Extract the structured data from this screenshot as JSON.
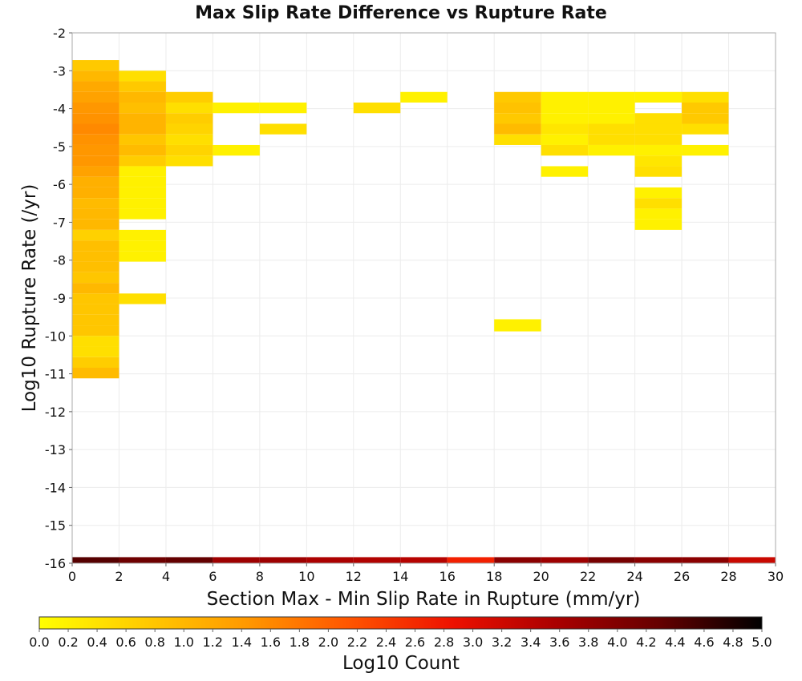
{
  "chart_data": {
    "type": "heatmap",
    "title": "Max Slip Rate Difference vs Rupture Rate",
    "xlabel": "Section Max - Min Slip Rate in Rupture (mm/yr)",
    "ylabel": "Log10 Rupture Rate (/yr)",
    "xlim": [
      0,
      30
    ],
    "ylim": [
      -16,
      -2
    ],
    "x_ticks": [
      "0",
      "2",
      "4",
      "6",
      "8",
      "10",
      "12",
      "14",
      "16",
      "18",
      "20",
      "22",
      "24",
      "26",
      "28",
      "30"
    ],
    "y_ticks": [
      "-2",
      "-3",
      "-4",
      "-5",
      "-6",
      "-7",
      "-8",
      "-9",
      "-10",
      "-11",
      "-12",
      "-13",
      "-14",
      "-15",
      "-16"
    ],
    "grid": true,
    "colorscale": {
      "label": "Log10 Count",
      "min": 0.0,
      "max": 5.0,
      "ticks": [
        "0.0",
        "0.2",
        "0.4",
        "0.6",
        "0.8",
        "1.0",
        "1.2",
        "1.4",
        "1.6",
        "1.8",
        "2.0",
        "2.2",
        "2.4",
        "2.6",
        "2.8",
        "3.0",
        "3.2",
        "3.4",
        "3.6",
        "3.8",
        "4.0",
        "4.2",
        "4.4",
        "4.6",
        "4.8",
        "5.0"
      ],
      "colors": [
        "#ffff00",
        "#ffcc00",
        "#ff9900",
        "#ff5500",
        "#ee1100",
        "#aa0000",
        "#660000",
        "#000000"
      ]
    },
    "cells": [
      {
        "x": [
          0,
          2
        ],
        "y": [
          -3.0,
          -2.72
        ],
        "v": 0.75
      },
      {
        "x": [
          0,
          2
        ],
        "y": [
          -3.28,
          -3.0
        ],
        "v": 1.0
      },
      {
        "x": [
          0,
          2
        ],
        "y": [
          -3.56,
          -3.28
        ],
        "v": 1.2
      },
      {
        "x": [
          0,
          2
        ],
        "y": [
          -3.84,
          -3.56
        ],
        "v": 1.3
      },
      {
        "x": [
          0,
          2
        ],
        "y": [
          -4.12,
          -3.84
        ],
        "v": 1.45
      },
      {
        "x": [
          0,
          2
        ],
        "y": [
          -4.4,
          -4.12
        ],
        "v": 1.5
      },
      {
        "x": [
          0,
          2
        ],
        "y": [
          -4.68,
          -4.4
        ],
        "v": 1.6
      },
      {
        "x": [
          0,
          2
        ],
        "y": [
          -4.96,
          -4.68
        ],
        "v": 1.5
      },
      {
        "x": [
          0,
          2
        ],
        "y": [
          -5.24,
          -4.96
        ],
        "v": 1.45
      },
      {
        "x": [
          0,
          2
        ],
        "y": [
          -5.52,
          -5.24
        ],
        "v": 1.45
      },
      {
        "x": [
          0,
          2
        ],
        "y": [
          -5.8,
          -5.52
        ],
        "v": 1.3
      },
      {
        "x": [
          0,
          2
        ],
        "y": [
          -6.08,
          -5.8
        ],
        "v": 1.1
      },
      {
        "x": [
          0,
          2
        ],
        "y": [
          -6.36,
          -6.08
        ],
        "v": 1.1
      },
      {
        "x": [
          0,
          2
        ],
        "y": [
          -6.64,
          -6.36
        ],
        "v": 0.95
      },
      {
        "x": [
          0,
          2
        ],
        "y": [
          -6.92,
          -6.64
        ],
        "v": 1.0
      },
      {
        "x": [
          0,
          2
        ],
        "y": [
          -7.2,
          -6.92
        ],
        "v": 1.0
      },
      {
        "x": [
          0,
          2
        ],
        "y": [
          -7.48,
          -7.2
        ],
        "v": 0.65
      },
      {
        "x": [
          0,
          2
        ],
        "y": [
          -7.76,
          -7.48
        ],
        "v": 0.9
      },
      {
        "x": [
          0,
          2
        ],
        "y": [
          -8.04,
          -7.76
        ],
        "v": 0.9
      },
      {
        "x": [
          0,
          2
        ],
        "y": [
          -8.32,
          -8.04
        ],
        "v": 0.9
      },
      {
        "x": [
          0,
          2
        ],
        "y": [
          -8.6,
          -8.32
        ],
        "v": 0.8
      },
      {
        "x": [
          0,
          2
        ],
        "y": [
          -8.88,
          -8.6
        ],
        "v": 1.0
      },
      {
        "x": [
          0,
          2
        ],
        "y": [
          -9.16,
          -8.88
        ],
        "v": 0.8
      },
      {
        "x": [
          0,
          2
        ],
        "y": [
          -9.44,
          -9.16
        ],
        "v": 0.8
      },
      {
        "x": [
          0,
          2
        ],
        "y": [
          -9.72,
          -9.44
        ],
        "v": 0.8
      },
      {
        "x": [
          0,
          2
        ],
        "y": [
          -10.0,
          -9.72
        ],
        "v": 0.8
      },
      {
        "x": [
          0,
          2
        ],
        "y": [
          -10.28,
          -10.0
        ],
        "v": 0.45
      },
      {
        "x": [
          0,
          2
        ],
        "y": [
          -10.56,
          -10.28
        ],
        "v": 0.45
      },
      {
        "x": [
          0,
          2
        ],
        "y": [
          -10.84,
          -10.56
        ],
        "v": 0.7
      },
      {
        "x": [
          0,
          2
        ],
        "y": [
          -11.12,
          -10.84
        ],
        "v": 0.95
      },
      {
        "x": [
          2,
          4
        ],
        "y": [
          -3.28,
          -3.0
        ],
        "v": 0.45
      },
      {
        "x": [
          2,
          4
        ],
        "y": [
          -3.56,
          -3.28
        ],
        "v": 0.75
      },
      {
        "x": [
          2,
          4
        ],
        "y": [
          -3.84,
          -3.56
        ],
        "v": 1.0
      },
      {
        "x": [
          2,
          4
        ],
        "y": [
          -4.12,
          -3.84
        ],
        "v": 0.9
      },
      {
        "x": [
          2,
          4
        ],
        "y": [
          -4.4,
          -4.12
        ],
        "v": 1.05
      },
      {
        "x": [
          2,
          4
        ],
        "y": [
          -4.68,
          -4.4
        ],
        "v": 1.05
      },
      {
        "x": [
          2,
          4
        ],
        "y": [
          -4.96,
          -4.68
        ],
        "v": 0.8
      },
      {
        "x": [
          2,
          4
        ],
        "y": [
          -5.24,
          -4.96
        ],
        "v": 0.95
      },
      {
        "x": [
          2,
          4
        ],
        "y": [
          -5.52,
          -5.24
        ],
        "v": 0.7
      },
      {
        "x": [
          2,
          4
        ],
        "y": [
          -5.8,
          -5.52
        ],
        "v": 0.2
      },
      {
        "x": [
          2,
          4
        ],
        "y": [
          -6.08,
          -5.8
        ],
        "v": 0.2
      },
      {
        "x": [
          2,
          4
        ],
        "y": [
          -6.36,
          -6.08
        ],
        "v": 0.2
      },
      {
        "x": [
          2,
          4
        ],
        "y": [
          -6.64,
          -6.36
        ],
        "v": 0.2
      },
      {
        "x": [
          2,
          4
        ],
        "y": [
          -6.92,
          -6.64
        ],
        "v": 0.2
      },
      {
        "x": [
          2,
          4
        ],
        "y": [
          -7.48,
          -7.2
        ],
        "v": 0.2
      },
      {
        "x": [
          2,
          4
        ],
        "y": [
          -7.76,
          -7.48
        ],
        "v": 0.2
      },
      {
        "x": [
          2,
          4
        ],
        "y": [
          -8.04,
          -7.76
        ],
        "v": 0.2
      },
      {
        "x": [
          2,
          4
        ],
        "y": [
          -9.16,
          -8.88
        ],
        "v": 0.45
      },
      {
        "x": [
          4,
          6
        ],
        "y": [
          -3.84,
          -3.56
        ],
        "v": 0.7
      },
      {
        "x": [
          4,
          6
        ],
        "y": [
          -4.12,
          -3.84
        ],
        "v": 0.45
      },
      {
        "x": [
          4,
          6
        ],
        "y": [
          -4.4,
          -4.12
        ],
        "v": 0.7
      },
      {
        "x": [
          4,
          6
        ],
        "y": [
          -4.68,
          -4.4
        ],
        "v": 0.6
      },
      {
        "x": [
          4,
          6
        ],
        "y": [
          -4.96,
          -4.68
        ],
        "v": 0.45
      },
      {
        "x": [
          4,
          6
        ],
        "y": [
          -5.24,
          -4.96
        ],
        "v": 0.6
      },
      {
        "x": [
          4,
          6
        ],
        "y": [
          -5.52,
          -5.24
        ],
        "v": 0.45
      },
      {
        "x": [
          6,
          8
        ],
        "y": [
          -4.12,
          -3.84
        ],
        "v": 0.2
      },
      {
        "x": [
          6,
          8
        ],
        "y": [
          -5.24,
          -4.96
        ],
        "v": 0.2
      },
      {
        "x": [
          8,
          10
        ],
        "y": [
          -4.12,
          -3.84
        ],
        "v": 0.2
      },
      {
        "x": [
          8,
          10
        ],
        "y": [
          -4.68,
          -4.4
        ],
        "v": 0.45
      },
      {
        "x": [
          12,
          14
        ],
        "y": [
          -4.12,
          -3.84
        ],
        "v": 0.45
      },
      {
        "x": [
          14,
          16
        ],
        "y": [
          -3.84,
          -3.56
        ],
        "v": 0.2
      },
      {
        "x": [
          18,
          20
        ],
        "y": [
          -3.84,
          -3.56
        ],
        "v": 0.75
      },
      {
        "x": [
          18,
          20
        ],
        "y": [
          -4.12,
          -3.84
        ],
        "v": 0.85
      },
      {
        "x": [
          18,
          20
        ],
        "y": [
          -4.4,
          -4.12
        ],
        "v": 0.75
      },
      {
        "x": [
          18,
          20
        ],
        "y": [
          -4.68,
          -4.4
        ],
        "v": 0.95
      },
      {
        "x": [
          18,
          20
        ],
        "y": [
          -4.96,
          -4.68
        ],
        "v": 0.45
      },
      {
        "x": [
          18,
          20
        ],
        "y": [
          -9.88,
          -9.56
        ],
        "v": 0.2
      },
      {
        "x": [
          20,
          22
        ],
        "y": [
          -3.84,
          -3.56
        ],
        "v": 0.2
      },
      {
        "x": [
          20,
          22
        ],
        "y": [
          -4.12,
          -3.84
        ],
        "v": 0.2
      },
      {
        "x": [
          20,
          22
        ],
        "y": [
          -4.4,
          -4.12
        ],
        "v": 0.2
      },
      {
        "x": [
          20,
          22
        ],
        "y": [
          -4.68,
          -4.4
        ],
        "v": 0.35
      },
      {
        "x": [
          20,
          22
        ],
        "y": [
          -4.96,
          -4.68
        ],
        "v": 0.2
      },
      {
        "x": [
          20,
          22
        ],
        "y": [
          -5.24,
          -4.96
        ],
        "v": 0.45
      },
      {
        "x": [
          20,
          22
        ],
        "y": [
          -5.8,
          -5.52
        ],
        "v": 0.2
      },
      {
        "x": [
          22,
          24
        ],
        "y": [
          -3.84,
          -3.56
        ],
        "v": 0.2
      },
      {
        "x": [
          22,
          24
        ],
        "y": [
          -4.12,
          -3.84
        ],
        "v": 0.2
      },
      {
        "x": [
          22,
          24
        ],
        "y": [
          -4.4,
          -4.12
        ],
        "v": 0.2
      },
      {
        "x": [
          22,
          24
        ],
        "y": [
          -4.68,
          -4.4
        ],
        "v": 0.45
      },
      {
        "x": [
          22,
          24
        ],
        "y": [
          -4.96,
          -4.68
        ],
        "v": 0.45
      },
      {
        "x": [
          22,
          24
        ],
        "y": [
          -5.24,
          -4.96
        ],
        "v": 0.2
      },
      {
        "x": [
          24,
          26
        ],
        "y": [
          -3.84,
          -3.56
        ],
        "v": 0.2
      },
      {
        "x": [
          24,
          26
        ],
        "y": [
          -4.4,
          -4.12
        ],
        "v": 0.45
      },
      {
        "x": [
          24,
          26
        ],
        "y": [
          -4.68,
          -4.4
        ],
        "v": 0.45
      },
      {
        "x": [
          24,
          26
        ],
        "y": [
          -4.96,
          -4.68
        ],
        "v": 0.45
      },
      {
        "x": [
          24,
          26
        ],
        "y": [
          -5.24,
          -4.96
        ],
        "v": 0.2
      },
      {
        "x": [
          24,
          26
        ],
        "y": [
          -5.52,
          -5.24
        ],
        "v": 0.35
      },
      {
        "x": [
          24,
          26
        ],
        "y": [
          -5.8,
          -5.52
        ],
        "v": 0.45
      },
      {
        "x": [
          24,
          26
        ],
        "y": [
          -6.36,
          -6.08
        ],
        "v": 0.2
      },
      {
        "x": [
          24,
          26
        ],
        "y": [
          -6.64,
          -6.36
        ],
        "v": 0.45
      },
      {
        "x": [
          24,
          26
        ],
        "y": [
          -6.92,
          -6.64
        ],
        "v": 0.2
      },
      {
        "x": [
          24,
          26
        ],
        "y": [
          -7.2,
          -6.92
        ],
        "v": 0.2
      },
      {
        "x": [
          26,
          28
        ],
        "y": [
          -3.84,
          -3.56
        ],
        "v": 0.45
      },
      {
        "x": [
          26,
          28
        ],
        "y": [
          -4.12,
          -3.84
        ],
        "v": 0.75
      },
      {
        "x": [
          26,
          28
        ],
        "y": [
          -4.4,
          -4.12
        ],
        "v": 0.75
      },
      {
        "x": [
          26,
          28
        ],
        "y": [
          -4.68,
          -4.4
        ],
        "v": 0.45
      },
      {
        "x": [
          26,
          28
        ],
        "y": [
          -5.24,
          -4.96
        ],
        "v": 0.2
      },
      {
        "x": [
          0,
          2
        ],
        "y": [
          -16.0,
          -15.84
        ],
        "v": 4.4
      },
      {
        "x": [
          2,
          4
        ],
        "y": [
          -16.0,
          -15.84
        ],
        "v": 4.2
      },
      {
        "x": [
          4,
          6
        ],
        "y": [
          -16.0,
          -15.84
        ],
        "v": 4.3
      },
      {
        "x": [
          6,
          8
        ],
        "y": [
          -16.0,
          -15.84
        ],
        "v": 3.7
      },
      {
        "x": [
          8,
          10
        ],
        "y": [
          -16.0,
          -15.84
        ],
        "v": 3.7
      },
      {
        "x": [
          10,
          12
        ],
        "y": [
          -16.0,
          -15.84
        ],
        "v": 3.55
      },
      {
        "x": [
          12,
          14
        ],
        "y": [
          -16.0,
          -15.84
        ],
        "v": 3.5
      },
      {
        "x": [
          14,
          16
        ],
        "y": [
          -16.0,
          -15.84
        ],
        "v": 3.45
      },
      {
        "x": [
          16,
          18
        ],
        "y": [
          -16.0,
          -15.84
        ],
        "v": 2.7
      },
      {
        "x": [
          18,
          20
        ],
        "y": [
          -16.0,
          -15.84
        ],
        "v": 3.9
      },
      {
        "x": [
          20,
          22
        ],
        "y": [
          -16.0,
          -15.84
        ],
        "v": 3.7
      },
      {
        "x": [
          22,
          24
        ],
        "y": [
          -16.0,
          -15.84
        ],
        "v": 4.1
      },
      {
        "x": [
          24,
          26
        ],
        "y": [
          -16.0,
          -15.84
        ],
        "v": 3.9
      },
      {
        "x": [
          26,
          28
        ],
        "y": [
          -16.0,
          -15.84
        ],
        "v": 3.9
      },
      {
        "x": [
          28,
          30
        ],
        "y": [
          -16.0,
          -15.84
        ],
        "v": 3.25
      }
    ]
  }
}
